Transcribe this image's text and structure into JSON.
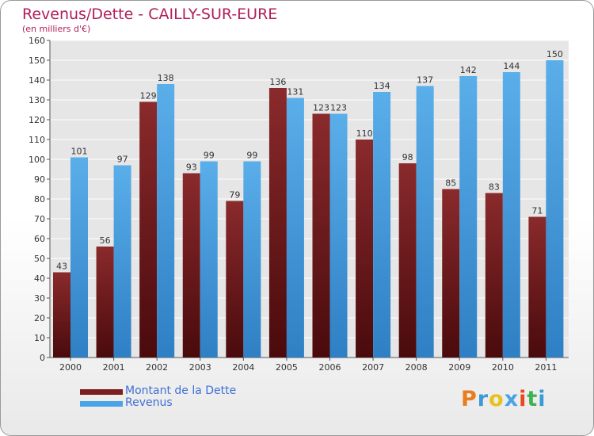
{
  "chart_data": {
    "type": "bar",
    "title": "Revenus/Dette - CAILLY-SUR-EURE",
    "subtitle": "(en milliers d'€)",
    "categories": [
      "2000",
      "2001",
      "2002",
      "2003",
      "2004",
      "2005",
      "2006",
      "2007",
      "2008",
      "2009",
      "2010",
      "2011"
    ],
    "series": [
      {
        "name": "Montant de la Dette",
        "color": "#7a1e20",
        "values": [
          43,
          56,
          129,
          93,
          79,
          136,
          123,
          110,
          98,
          85,
          83,
          71
        ]
      },
      {
        "name": "Revenus",
        "color": "#4aa3e6",
        "values": [
          101,
          97,
          138,
          99,
          99,
          131,
          123,
          134,
          137,
          142,
          144,
          150
        ]
      }
    ],
    "ylim": [
      0,
      160
    ],
    "ytick_step": 10,
    "grid": true,
    "legend_position": "bottom-left"
  },
  "logo": {
    "text": "Proxiti",
    "colors": [
      "#e87d1e",
      "#3a9bd6",
      "#e8c11e",
      "#4aa3e6",
      "#e84a1e",
      "#3fb34f",
      "#3a9bd6"
    ]
  }
}
